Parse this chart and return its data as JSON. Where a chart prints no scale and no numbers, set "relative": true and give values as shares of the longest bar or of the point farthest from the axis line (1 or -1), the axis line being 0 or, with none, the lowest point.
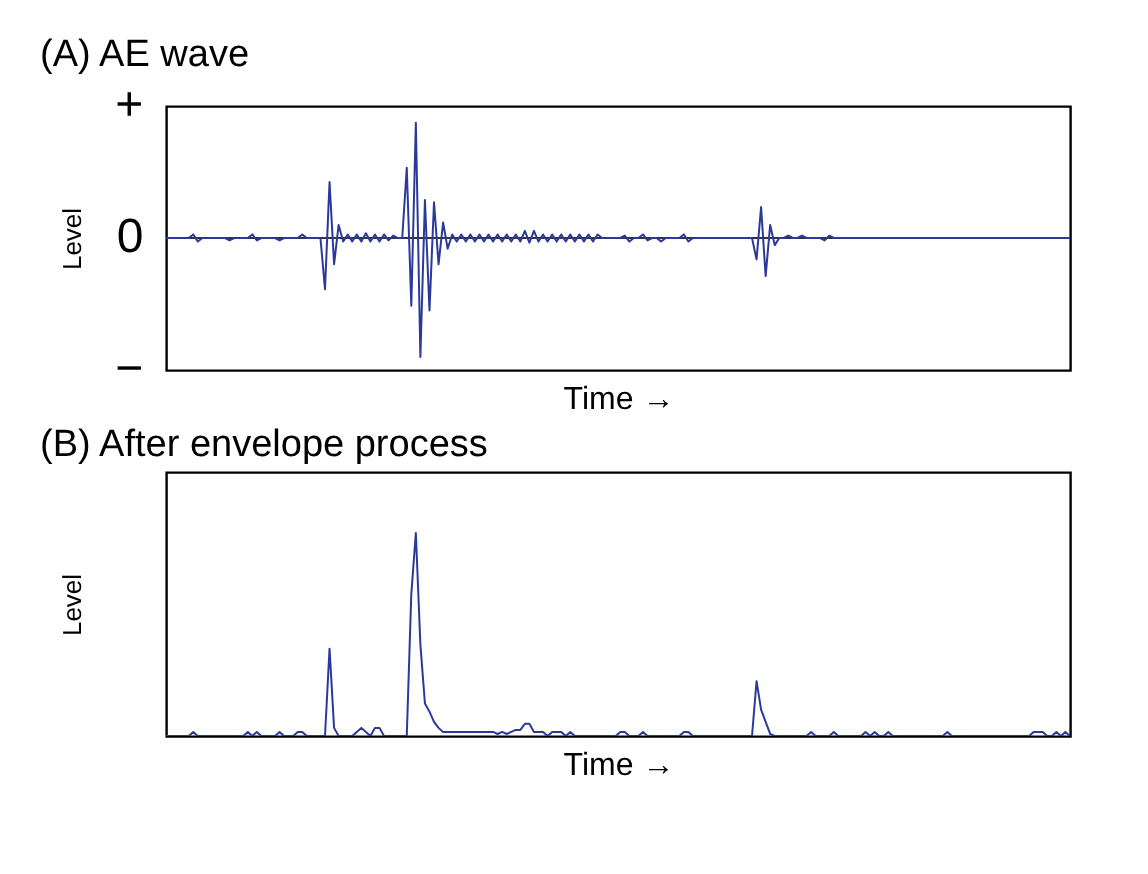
{
  "chart_data": [
    {
      "type": "line",
      "title": "(A) AE wave",
      "xlabel": "Time →",
      "ylabel": "Level",
      "relative": true,
      "annotations": [
        "+",
        "0",
        "−"
      ],
      "categories": [
        null,
        null,
        null,
        null,
        null,
        null,
        null,
        null,
        null,
        null,
        null,
        null,
        null,
        null,
        null,
        null,
        null,
        null,
        null,
        null,
        null,
        null,
        null,
        null,
        null,
        null,
        null,
        null,
        null,
        null,
        null,
        null,
        null,
        null,
        null,
        null,
        null,
        null,
        null,
        null,
        null,
        null,
        null,
        null,
        null,
        null,
        null,
        null,
        null,
        null,
        null,
        null,
        null,
        null,
        null,
        null,
        null,
        null,
        null,
        null,
        null,
        null,
        null,
        null,
        null,
        null,
        null,
        null,
        null,
        null,
        null,
        null,
        null,
        null,
        null,
        null,
        null,
        null,
        null,
        null,
        null,
        null,
        null,
        null,
        null,
        null,
        null,
        null,
        null,
        null,
        null,
        null,
        null,
        null,
        null,
        null,
        null,
        null,
        null,
        null,
        null,
        null,
        null,
        null,
        null,
        null,
        null,
        null,
        null,
        null,
        null,
        null,
        null,
        null,
        null,
        null,
        null,
        null,
        null,
        null,
        null,
        null,
        null,
        null,
        null,
        null,
        null,
        null,
        null,
        null,
        null,
        null,
        null,
        null,
        null,
        null,
        null,
        null,
        null,
        null,
        null,
        null,
        null,
        null,
        null,
        null,
        null,
        null,
        null,
        null,
        null,
        null,
        null,
        null,
        null,
        null,
        null,
        null,
        null,
        null,
        null,
        null,
        null,
        null,
        null,
        null,
        null,
        null,
        null,
        null,
        null,
        null,
        null,
        null,
        null,
        null,
        null,
        null,
        null,
        null,
        null,
        null,
        null,
        null,
        null,
        null,
        null,
        null,
        null,
        null,
        null,
        null,
        null,
        null,
        null,
        null,
        null,
        null,
        null,
        null
      ],
      "series": [
        {
          "color": "#2b3a9a",
          "values": [
            0,
            0,
            0,
            0,
            0,
            0,
            0.03,
            -0.03,
            0,
            0,
            0,
            0,
            0,
            0,
            -0.02,
            0,
            0,
            0,
            0,
            0.03,
            -0.02,
            0,
            0,
            0,
            0,
            -0.02,
            0,
            0,
            0,
            0,
            0.03,
            0,
            0,
            0,
            0,
            -0.43,
            0.47,
            -0.22,
            0.11,
            -0.03,
            0.03,
            -0.03,
            0.03,
            -0.03,
            0.04,
            -0.03,
            0.03,
            -0.03,
            0.03,
            -0.02,
            0.02,
            0,
            0,
            0.59,
            -0.57,
            0.97,
            -1,
            0.32,
            -0.61,
            0.3,
            -0.22,
            0.13,
            -0.09,
            0.03,
            -0.03,
            0.03,
            -0.03,
            0.03,
            -0.03,
            0.03,
            -0.03,
            0.03,
            -0.03,
            0.03,
            -0.03,
            0.03,
            -0.03,
            0.03,
            -0.03,
            0.06,
            -0.04,
            0.06,
            -0.03,
            0.03,
            -0.03,
            0.03,
            -0.03,
            0.03,
            -0.03,
            0.03,
            -0.03,
            0.03,
            -0.03,
            0.03,
            -0.03,
            0.03,
            0,
            0,
            0,
            0,
            0,
            0.02,
            -0.03,
            0,
            0,
            0.03,
            -0.02,
            0,
            0,
            -0.03,
            0,
            0,
            0,
            0,
            0.03,
            -0.03,
            0,
            0,
            0,
            0,
            0,
            0,
            0,
            0,
            0,
            0,
            0,
            0,
            0,
            0,
            -0.18,
            0.26,
            -0.32,
            0.11,
            -0.06,
            0,
            0,
            0.02,
            0,
            0,
            0.02,
            0,
            0,
            0,
            0,
            -0.02,
            0.02,
            0,
            0,
            0,
            0,
            0,
            0,
            0,
            0,
            0,
            0,
            0,
            0,
            0,
            0,
            0,
            0,
            0,
            0,
            0,
            0,
            0,
            0,
            0,
            0,
            0,
            0,
            0,
            0,
            0,
            0,
            0,
            0,
            0,
            0,
            0,
            0,
            0,
            0,
            0,
            0,
            0,
            0,
            0,
            0,
            0,
            0,
            0,
            0,
            0,
            0,
            0,
            0,
            0
          ]
        }
      ]
    },
    {
      "type": "line",
      "title": "(B) After envelope process",
      "xlabel": "Time →",
      "ylabel": "Level",
      "relative": true,
      "categories": [
        null,
        null,
        null,
        null,
        null,
        null,
        null,
        null,
        null,
        null,
        null,
        null,
        null,
        null,
        null,
        null,
        null,
        null,
        null,
        null,
        null,
        null,
        null,
        null,
        null,
        null,
        null,
        null,
        null,
        null,
        null,
        null,
        null,
        null,
        null,
        null,
        null,
        null,
        null,
        null,
        null,
        null,
        null,
        null,
        null,
        null,
        null,
        null,
        null,
        null,
        null,
        null,
        null,
        null,
        null,
        null,
        null,
        null,
        null,
        null,
        null,
        null,
        null,
        null,
        null,
        null,
        null,
        null,
        null,
        null,
        null,
        null,
        null,
        null,
        null,
        null,
        null,
        null,
        null,
        null,
        null,
        null,
        null,
        null,
        null,
        null,
        null,
        null,
        null,
        null,
        null,
        null,
        null,
        null,
        null,
        null,
        null,
        null,
        null,
        null,
        null,
        null,
        null,
        null,
        null,
        null,
        null,
        null,
        null,
        null,
        null,
        null,
        null,
        null,
        null,
        null,
        null,
        null,
        null,
        null,
        null,
        null,
        null,
        null,
        null,
        null,
        null,
        null,
        null,
        null,
        null,
        null,
        null,
        null,
        null,
        null,
        null,
        null,
        null,
        null,
        null,
        null,
        null,
        null,
        null,
        null,
        null,
        null,
        null,
        null,
        null,
        null,
        null,
        null,
        null,
        null,
        null,
        null,
        null,
        null,
        null,
        null,
        null,
        null,
        null,
        null,
        null,
        null,
        null,
        null,
        null,
        null,
        null,
        null,
        null,
        null,
        null,
        null,
        null,
        null,
        null,
        null,
        null,
        null,
        null,
        null,
        null,
        null,
        null,
        null,
        null,
        null,
        null,
        null,
        null,
        null,
        null,
        null,
        null,
        null
      ],
      "series": [
        {
          "color": "#2b3a9a",
          "values": [
            0,
            0,
            0,
            0,
            0,
            0,
            0.02,
            0,
            0,
            0,
            0,
            0,
            0,
            0,
            0,
            0,
            0,
            0,
            0.02,
            0,
            0.02,
            0,
            0,
            0,
            0,
            0.02,
            0,
            0,
            0,
            0.02,
            0.02,
            0,
            0,
            0,
            0,
            0,
            0.43,
            0.04,
            0,
            0,
            0,
            0,
            0.02,
            0.04,
            0.02,
            0,
            0.04,
            0.04,
            0,
            0,
            0,
            0,
            0,
            0,
            0.7,
            1,
            0.45,
            0.16,
            0.12,
            0.07,
            0.04,
            0.02,
            0.02,
            0.02,
            0.02,
            0.02,
            0.02,
            0.02,
            0.02,
            0.02,
            0.02,
            0.02,
            0.02,
            0.01,
            0.02,
            0.01,
            0.02,
            0.03,
            0.03,
            0.06,
            0.06,
            0.02,
            0.02,
            0.02,
            0,
            0.02,
            0.02,
            0.02,
            0,
            0.02,
            0,
            0,
            0,
            0,
            0,
            0,
            0,
            0,
            0,
            0,
            0.02,
            0.02,
            0,
            0,
            0,
            0.02,
            0,
            0,
            0,
            0,
            0,
            0,
            0,
            0,
            0.02,
            0.02,
            0,
            0,
            0,
            0,
            0,
            0,
            0,
            0,
            0,
            0,
            0,
            0,
            0,
            0,
            0.27,
            0.13,
            0.07,
            0.01,
            0,
            0,
            0,
            0,
            0,
            0,
            0,
            0,
            0.02,
            0,
            0,
            0,
            0,
            0.02,
            0,
            0,
            0,
            0,
            0,
            0,
            0.02,
            0,
            0.02,
            0,
            0,
            0.02,
            0,
            0,
            0,
            0,
            0,
            0,
            0,
            0,
            0,
            0,
            0,
            0,
            0.02,
            0,
            0,
            0,
            0,
            0,
            0,
            0,
            0,
            0,
            0,
            0,
            0,
            0,
            0,
            0,
            0,
            0,
            0,
            0.02,
            0.02,
            0.02,
            0,
            0,
            0.02,
            0,
            0.02,
            0
          ]
        }
      ]
    }
  ]
}
